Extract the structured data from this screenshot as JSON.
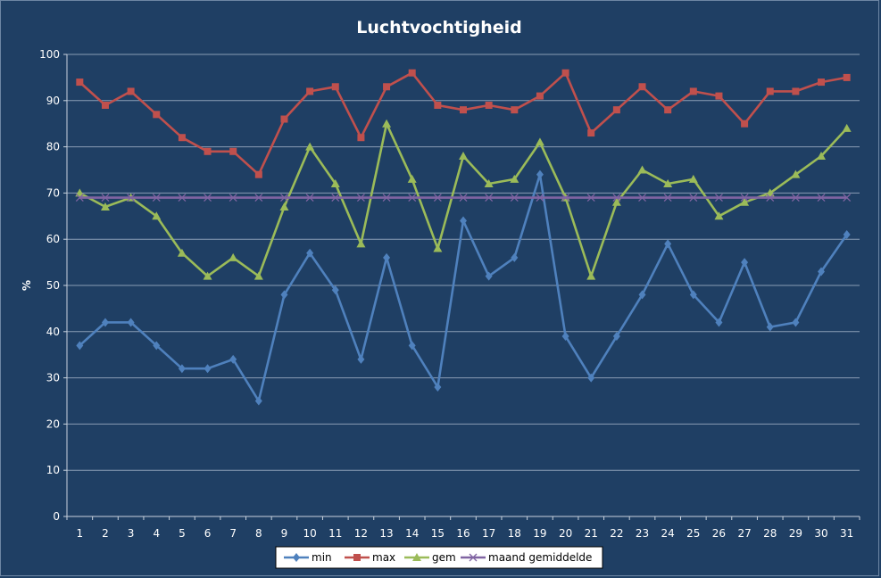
{
  "chart_data": {
    "type": "line",
    "title": "Luchtvochtigheid",
    "xlabel": "",
    "ylabel": "%",
    "ylim": [
      0,
      100
    ],
    "yticks": [
      0,
      10,
      20,
      30,
      40,
      50,
      60,
      70,
      80,
      90,
      100
    ],
    "categories": [
      "1",
      "2",
      "3",
      "4",
      "5",
      "6",
      "7",
      "8",
      "9",
      "10",
      "11",
      "12",
      "13",
      "14",
      "15",
      "16",
      "17",
      "18",
      "19",
      "20",
      "21",
      "22",
      "23",
      "24",
      "25",
      "26",
      "27",
      "28",
      "29",
      "30",
      "31"
    ],
    "grid": "horizontal",
    "legend_position": "bottom",
    "series": [
      {
        "name": "min",
        "color": "#4f81bd",
        "marker": "diamond",
        "values": [
          37,
          42,
          42,
          37,
          32,
          32,
          34,
          25,
          48,
          57,
          49,
          34,
          56,
          37,
          28,
          64,
          52,
          56,
          74,
          39,
          30,
          39,
          48,
          59,
          48,
          42,
          55,
          41,
          42,
          53,
          61
        ]
      },
      {
        "name": "max",
        "color": "#c0504d",
        "marker": "square",
        "values": [
          94,
          89,
          92,
          87,
          82,
          79,
          79,
          74,
          86,
          92,
          93,
          82,
          93,
          96,
          89,
          88,
          89,
          88,
          91,
          96,
          83,
          88,
          93,
          88,
          92,
          91,
          85,
          92,
          92,
          94,
          95
        ]
      },
      {
        "name": "gem",
        "color": "#9bbb59",
        "marker": "triangle",
        "values": [
          70,
          67,
          69,
          65,
          57,
          52,
          56,
          52,
          67,
          80,
          72,
          59,
          85,
          73,
          58,
          78,
          72,
          73,
          81,
          69,
          52,
          68,
          75,
          72,
          73,
          65,
          68,
          70,
          74,
          78,
          84
        ]
      },
      {
        "name": "maand gemiddelde",
        "color": "#8064a2",
        "marker": "x",
        "values": [
          69,
          69,
          69,
          69,
          69,
          69,
          69,
          69,
          69,
          69,
          69,
          69,
          69,
          69,
          69,
          69,
          69,
          69,
          69,
          69,
          69,
          69,
          69,
          69,
          69,
          69,
          69,
          69,
          69,
          69,
          69
        ]
      }
    ]
  }
}
